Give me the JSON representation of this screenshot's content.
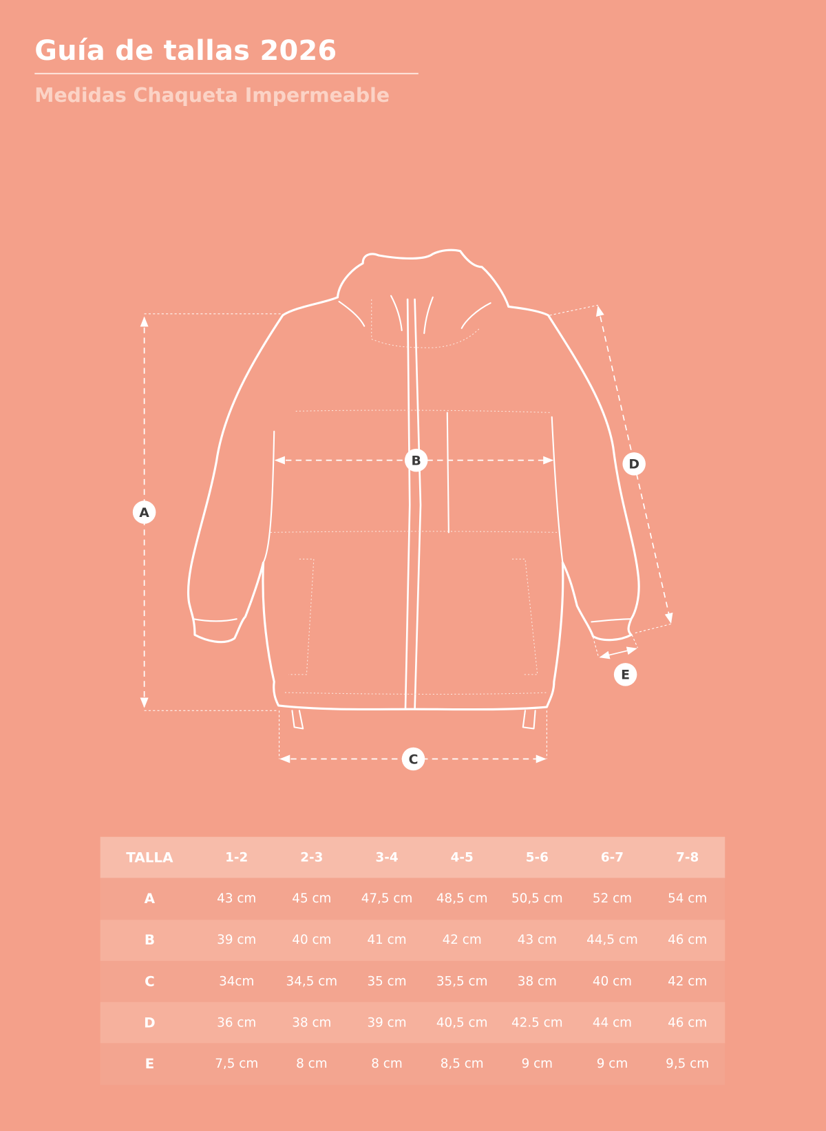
{
  "header": {
    "title": "Guía de tallas 2026",
    "subtitle": "Medidas Chaqueta Impermeable"
  },
  "diagram": {
    "labels": {
      "a": "A",
      "b": "B",
      "c": "C",
      "d": "D",
      "e": "E"
    }
  },
  "colors": {
    "background": "#f4a08a",
    "header_row": "#f7bcaa",
    "row_dark": "#f3a590",
    "row_light": "#f6b19d",
    "line": "#ffffff"
  },
  "table": {
    "header": [
      "TALLA",
      "1-2",
      "2-3",
      "3-4",
      "4-5",
      "5-6",
      "6-7",
      "7-8"
    ],
    "rows": [
      {
        "label": "A",
        "values": [
          "43 cm",
          "45 cm",
          "47,5 cm",
          "48,5 cm",
          "50,5 cm",
          "52 cm",
          "54 cm"
        ]
      },
      {
        "label": "B",
        "values": [
          "39 cm",
          "40 cm",
          "41  cm",
          "42  cm",
          "43 cm",
          "44,5 cm",
          "46 cm"
        ]
      },
      {
        "label": "C",
        "values": [
          "34cm",
          "34,5 cm",
          "35 cm",
          "35,5 cm",
          "38  cm",
          "40  cm",
          "42  cm"
        ]
      },
      {
        "label": "D",
        "values": [
          "36  cm",
          "38  cm",
          "39 cm",
          "40,5 cm",
          "42.5 cm",
          "44 cm",
          "46  cm"
        ]
      },
      {
        "label": "E",
        "values": [
          "7,5 cm",
          "8 cm",
          "8 cm",
          "8,5 cm",
          "9 cm",
          "9 cm",
          "9,5 cm"
        ]
      }
    ]
  }
}
